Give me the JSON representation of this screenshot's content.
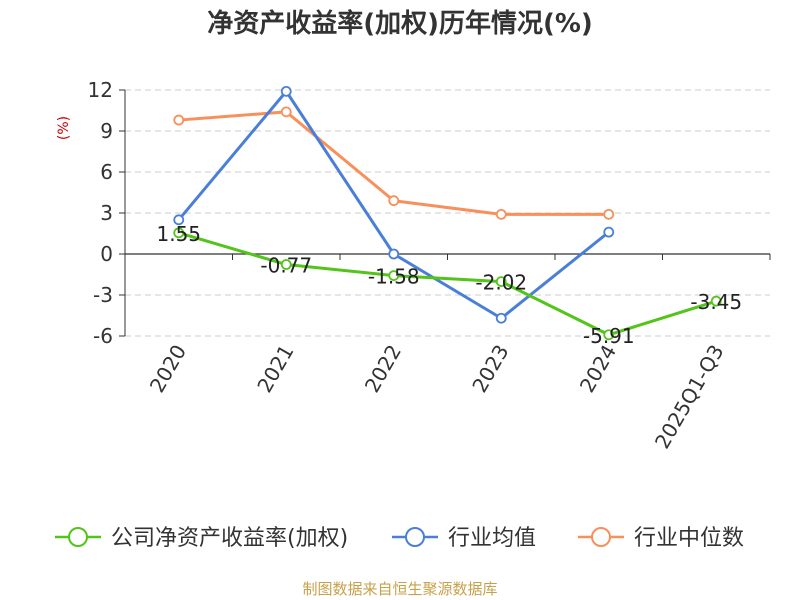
{
  "chart_data": {
    "type": "line",
    "title": "净资产收益率(加权)历年情况(%)",
    "ylabel": "(%)",
    "categories": [
      "2020",
      "2021",
      "2022",
      "2023",
      "2024",
      "2025Q1-Q3"
    ],
    "ylim": [
      -6,
      12
    ],
    "yticks": [
      12,
      9,
      6,
      3,
      0,
      -3,
      -6
    ],
    "grid": true,
    "legend_position": "bottom",
    "series": [
      {
        "name": "公司净资产收益率(加权)",
        "color": "#52c41a",
        "values": [
          1.55,
          -0.77,
          -1.58,
          -2.02,
          -5.91,
          -3.45
        ],
        "labels": [
          "1.55",
          "-0.77",
          "-1.58",
          "-2.02",
          "-5.91",
          "-3.45"
        ]
      },
      {
        "name": "行业均值",
        "color": "#4a7fd8",
        "values": [
          2.5,
          11.9,
          0.0,
          -4.7,
          1.6,
          null
        ]
      },
      {
        "name": "行业中位数",
        "color": "#f7905a",
        "values": [
          9.8,
          10.4,
          3.9,
          2.9,
          2.9,
          null
        ]
      }
    ]
  },
  "source": "制图数据来自恒生聚源数据库",
  "colors": {
    "ylabel": "#cc0000",
    "source": "#c9a04a",
    "grid": "#cccccc",
    "axis": "#333333"
  }
}
